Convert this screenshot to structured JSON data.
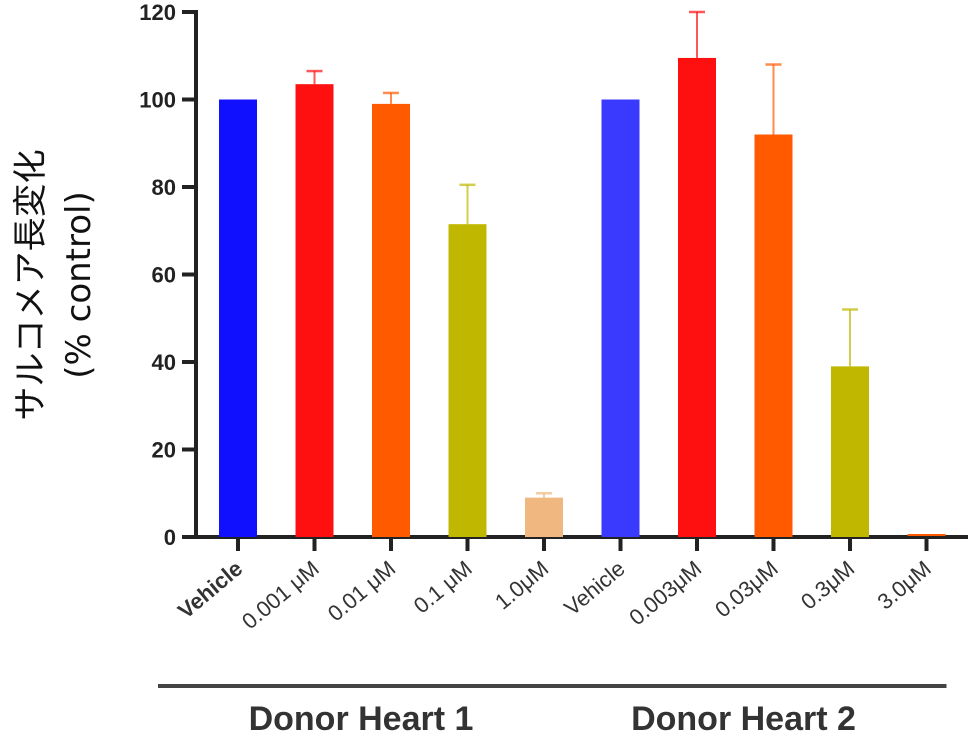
{
  "chart_data": {
    "type": "bar",
    "ylabel_line1": "サルコメア長変化",
    "ylabel_line2": "(% control)",
    "ylim": [
      0,
      120
    ],
    "yticks": [
      0,
      20,
      40,
      60,
      80,
      100,
      120
    ],
    "groups": [
      {
        "label": "Donor Heart 1",
        "categories": [
          "Vehicle",
          "0.001 μM",
          "0.01 μM",
          "0.1 μM",
          "1.0μM"
        ],
        "values": [
          100,
          103.5,
          99,
          71.5,
          9
        ],
        "errors": [
          0,
          3,
          2.5,
          9,
          1
        ],
        "colors": [
          "#1010ff",
          "#ff1010",
          "#ff5a00",
          "#c0b800",
          "#f0b880"
        ]
      },
      {
        "label": "Donor Heart 2",
        "categories": [
          "Vehicle",
          "0.003μM",
          "0.03μM",
          "0.3μM",
          "3.0μM"
        ],
        "values": [
          100,
          109.5,
          92,
          39,
          0
        ],
        "errors": [
          0,
          10.5,
          16,
          13,
          0
        ],
        "colors": [
          "#3a3aff",
          "#ff1010",
          "#ff5a00",
          "#c0b800",
          "#ff5a00"
        ]
      }
    ]
  }
}
